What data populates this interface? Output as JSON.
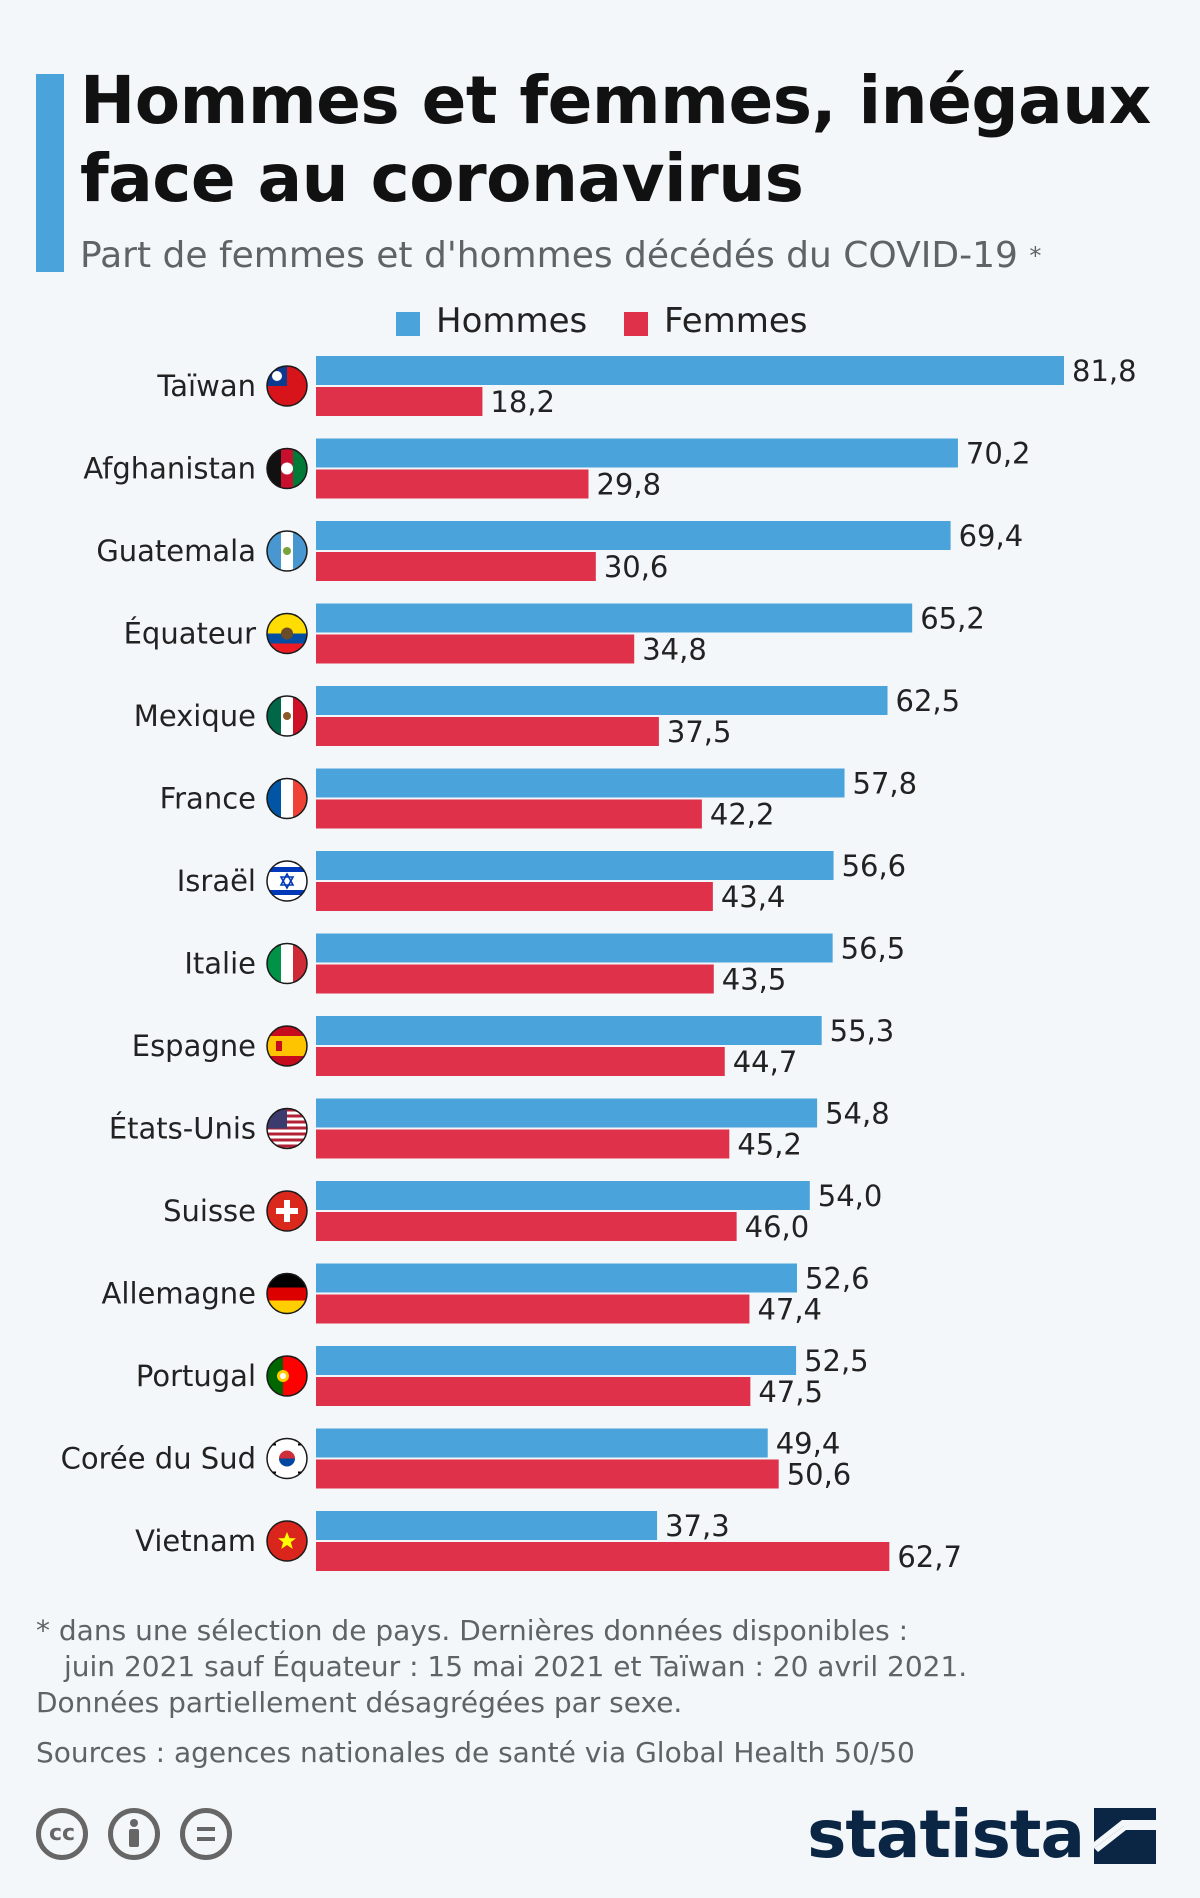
{
  "title": "Hommes et femmes, inégaux face au coronavirus",
  "subtitle": "Part de femmes et d'hommes décédés du COVID-19",
  "subtitle_marker": "*",
  "colors": {
    "men": "#4aa3da",
    "women": "#e0314b",
    "accent_bar": "#4aa3da",
    "brand": "#0b2545"
  },
  "chart_data": {
    "type": "bar",
    "orientation": "horizontal",
    "title": "Hommes et femmes, inégaux face au coronavirus",
    "xlabel": "",
    "ylabel": "",
    "xlim": [
      0,
      81.8
    ],
    "legend_position": "top-center",
    "categories": [
      "Taïwan",
      "Afghanistan",
      "Guatemala",
      "Équateur",
      "Mexique",
      "France",
      "Israël",
      "Italie",
      "Espagne",
      "États-Unis",
      "Suisse",
      "Allemagne",
      "Portugal",
      "Corée du Sud",
      "Vietnam"
    ],
    "flags": [
      "taiwan-flag-icon",
      "afghanistan-flag-icon",
      "guatemala-flag-icon",
      "ecuador-flag-icon",
      "mexico-flag-icon",
      "france-flag-icon",
      "israel-flag-icon",
      "italy-flag-icon",
      "spain-flag-icon",
      "usa-flag-icon",
      "switzerland-flag-icon",
      "germany-flag-icon",
      "portugal-flag-icon",
      "south-korea-flag-icon",
      "vietnam-flag-icon"
    ],
    "series": [
      {
        "name": "Hommes",
        "color": "#4aa3da",
        "values": [
          81.8,
          70.2,
          69.4,
          65.2,
          62.5,
          57.8,
          56.6,
          56.5,
          55.3,
          54.8,
          54.0,
          52.6,
          52.5,
          49.4,
          37.3
        ]
      },
      {
        "name": "Femmes",
        "color": "#e0314b",
        "values": [
          18.2,
          29.8,
          30.6,
          34.8,
          37.5,
          42.2,
          43.4,
          43.5,
          44.7,
          45.2,
          46.0,
          47.4,
          47.5,
          50.6,
          62.7
        ]
      }
    ]
  },
  "footnote": {
    "line1": "* dans une sélection de pays. Dernières données disponibles :",
    "line2": "juin 2021 sauf Équateur : 15 mai 2021 et Taïwan : 20 avril 2021.",
    "line3": "Données partiellement désagrégées par sexe."
  },
  "sources": "Sources : agences nationales de santé via Global Health 50/50",
  "license_icons": [
    "cc",
    "by",
    "nd"
  ],
  "license_labels": {
    "cc": "cc"
  },
  "brand": "statista"
}
